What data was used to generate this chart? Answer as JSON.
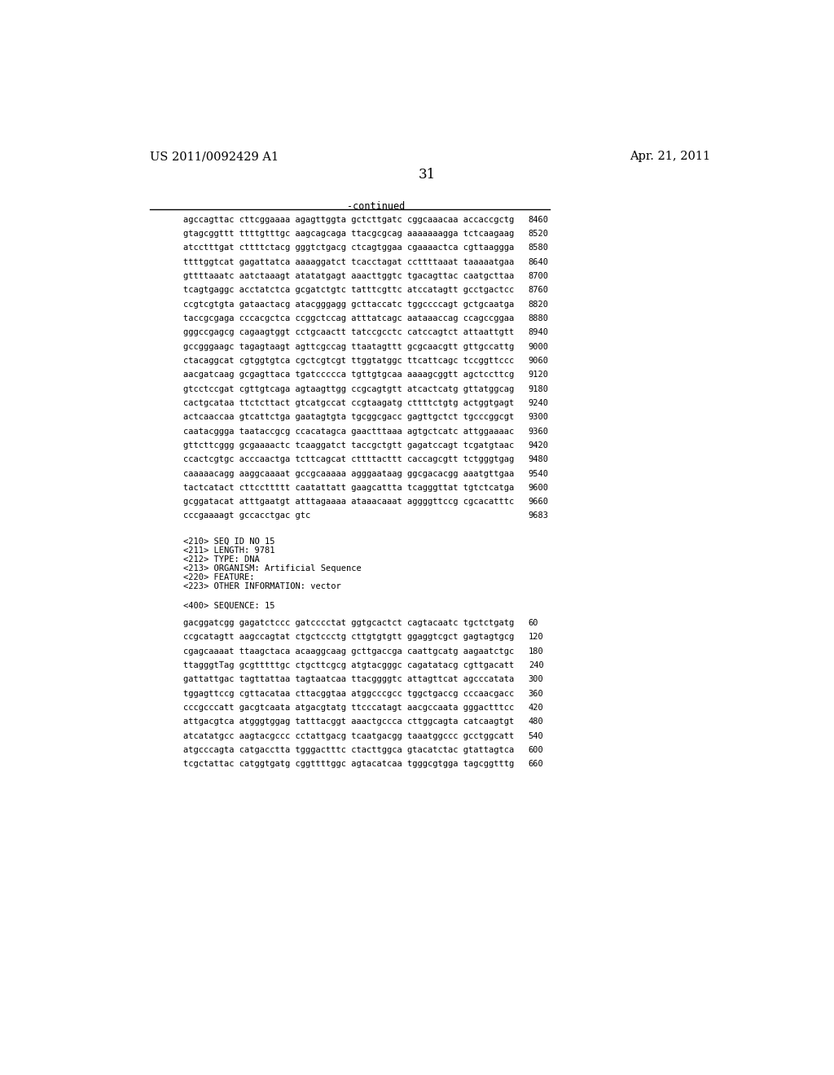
{
  "header_left": "US 2011/0092429 A1",
  "header_right": "Apr. 21, 2011",
  "page_number": "31",
  "continued_label": "-continued",
  "background_color": "#ffffff",
  "text_color": "#000000",
  "sequence_lines_continued": [
    [
      "agccagttac cttcggaaaa agagttggta gctcttgatc cggcaaacaa accaccgctg",
      "8460"
    ],
    [
      "gtagcggttt ttttgtttgc aagcagcaga ttacgcgcag aaaaaaagga tctcaagaag",
      "8520"
    ],
    [
      "atcctttgat cttttctacg gggtctgacg ctcagtggaa cgaaaactca cgttaaggga",
      "8580"
    ],
    [
      "ttttggtcat gagattatca aaaaggatct tcacctagat ccttttaaat taaaaatgaa",
      "8640"
    ],
    [
      "gttttaaatc aatctaaagt atatatgagt aaacttggtc tgacagttac caatgcttaa",
      "8700"
    ],
    [
      "tcagtgaggc acctatctca gcgatctgtc tatttcgttc atccatagtt gcctgactcc",
      "8760"
    ],
    [
      "ccgtcgtgta gataactacg atacgggagg gcttaccatc tggccccagt gctgcaatga",
      "8820"
    ],
    [
      "taccgcgaga cccacgctca ccggctccag atttatcagc aataaaccag ccagccggaa",
      "8880"
    ],
    [
      "gggccgagcg cagaagtggt cctgcaactt tatccgcctc catccagtct attaattgtt",
      "8940"
    ],
    [
      "gccgggaagc tagagtaagt agttcgccag ttaatagttt gcgcaacgtt gttgccattg",
      "9000"
    ],
    [
      "ctacaggcat cgtggtgtca cgctcgtcgt ttggtatggc ttcattcagc tccggttccc",
      "9060"
    ],
    [
      "aacgatcaag gcgagttaca tgatccccca tgttgtgcaa aaaagcggtt agctccttcg",
      "9120"
    ],
    [
      "gtcctccgat cgttgtcaga agtaagttgg ccgcagtgtt atcactcatg gttatggcag",
      "9180"
    ],
    [
      "cactgcataa ttctcttact gtcatgccat ccgtaagatg cttttctgtg actggtgagt",
      "9240"
    ],
    [
      "actcaaccaa gtcattctga gaatagtgta tgcggcgacc gagttgctct tgcccggcgt",
      "9300"
    ],
    [
      "caatacggga taataccgcg ccacatagca gaactttaaa agtgctcatc attggaaaac",
      "9360"
    ],
    [
      "gttcttcggg gcgaaaactc tcaaggatct taccgctgtt gagatccagt tcgatgtaac",
      "9420"
    ],
    [
      "ccactcgtgc acccaactga tcttcagcat cttttacttt caccagcgtt tctgggtgag",
      "9480"
    ],
    [
      "caaaaacagg aaggcaaaat gccgcaaaaa agggaataag ggcgacacgg aaatgttgaa",
      "9540"
    ],
    [
      "tactcatact cttccttttt caatattatt gaagcattta tcagggttat tgtctcatga",
      "9600"
    ],
    [
      "gcggatacat atttgaatgt atttagaaaa ataaacaaat aggggttccg cgcacatttc",
      "9660"
    ],
    [
      "cccgaaaagt gccacctgac gtc",
      "9683"
    ]
  ],
  "metadata_lines": [
    "<210> SEQ ID NO 15",
    "<211> LENGTH: 9781",
    "<212> TYPE: DNA",
    "<213> ORGANISM: Artificial Sequence",
    "<220> FEATURE:",
    "<223> OTHER INFORMATION: vector"
  ],
  "sequence_label": "<400> SEQUENCE: 15",
  "sequence_lines_new": [
    [
      "gacggatcgg gagatctccc gatcccctat ggtgcactct cagtacaatc tgctctgatg",
      "60"
    ],
    [
      "ccgcatagtt aagccagtat ctgctccctg cttgtgtgtt ggaggtcgct gagtagtgcg",
      "120"
    ],
    [
      "cgagcaaaat ttaagctaca acaaggcaag gcttgaccga caattgcatg aagaatctgc",
      "180"
    ],
    [
      "ttagggtTag gcgtttttgc ctgcttcgcg atgtacgggc cagatatacg cgttgacatt",
      "240"
    ],
    [
      "gattattgac tagttattaa tagtaatcaa ttacggggtc attagttcat agcccatata",
      "300"
    ],
    [
      "tggagttccg cgttacataa cttacggtaa atggcccgcc tggctgaccg cccaacgacc",
      "360"
    ],
    [
      "cccgcccatt gacgtcaata atgacgtatg ttcccatagt aacgccaata gggactttcc",
      "420"
    ],
    [
      "attgacgtca atgggtggag tatttacggt aaactgccca cttggcagta catcaagtgt",
      "480"
    ],
    [
      "atcatatgcc aagtacgccc cctattgacg tcaatgacgg taaatggccc gcctggcatt",
      "540"
    ],
    [
      "atgcccagta catgacctta tgggactttc ctacttggca gtacatctac gtattagtca",
      "600"
    ],
    [
      "tcgctattac catggtgatg cggttttggc agtacatcaa tgggcgtgga tagcggtttg",
      "660"
    ]
  ]
}
